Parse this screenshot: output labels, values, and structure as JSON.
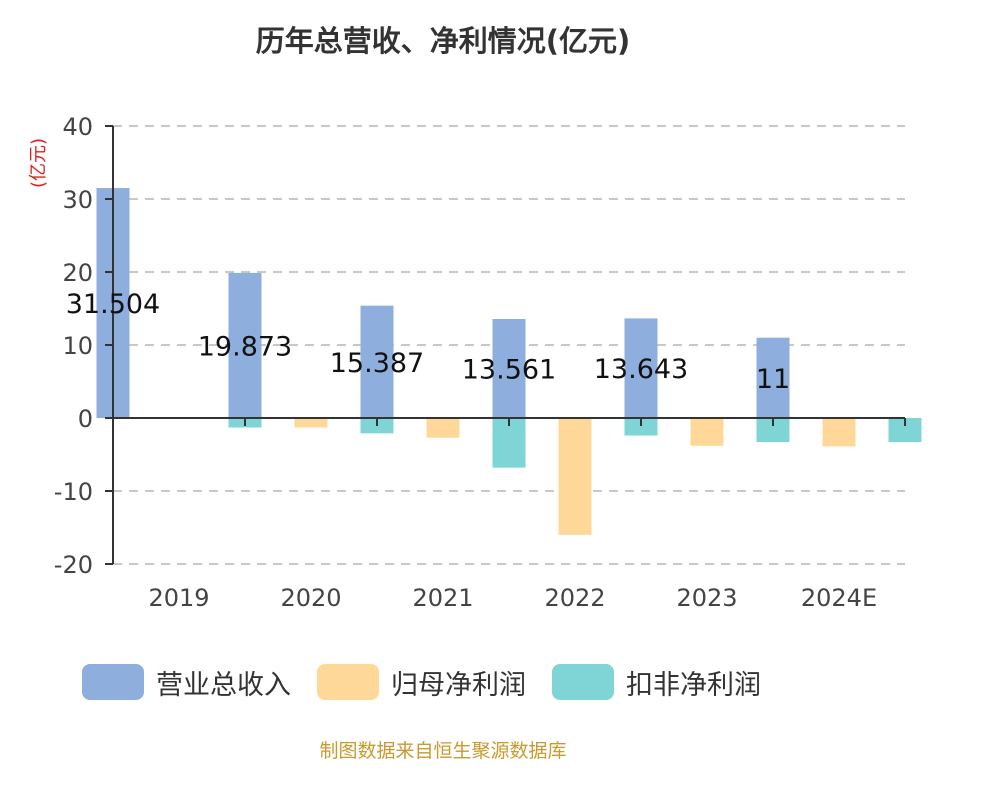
{
  "chart_data": {
    "type": "bar",
    "title": "历年总营收、净利情况(亿元)",
    "ylabel": "(亿元)",
    "xlabel": "",
    "ylim": [
      -20,
      40
    ],
    "yticks": [
      40,
      30,
      20,
      10,
      0,
      -10,
      -20
    ],
    "grid": true,
    "legend_position": "bottom",
    "categories": [
      "2019",
      "2020",
      "2021",
      "2022",
      "2023",
      "2024E"
    ],
    "series": [
      {
        "name": "营业总收入",
        "color": "#8eaedd",
        "values": [
          31.504,
          19.873,
          15.387,
          13.561,
          13.643,
          11
        ],
        "labels": [
          "31.504",
          "19.873",
          "15.387",
          "13.561",
          "13.643",
          "11"
        ]
      },
      {
        "name": "归母净利润",
        "color": "#fdd898",
        "values": [
          0,
          -1.3,
          -2.7,
          -16.0,
          -3.8,
          -3.9
        ]
      },
      {
        "name": "扣非净利润",
        "color": "#7fd4d6",
        "values": [
          -1.3,
          -2.1,
          -6.8,
          -2.4,
          -3.3,
          -3.3
        ]
      }
    ]
  },
  "footer": {
    "source": "制图数据来自恒生聚源数据库"
  }
}
